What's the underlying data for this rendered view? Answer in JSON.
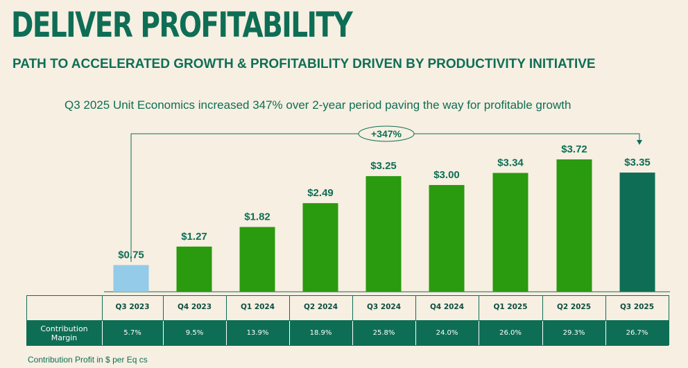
{
  "header": {
    "title": "DELIVER PROFITABILITY",
    "subtitle": "PATH TO ACCELERATED GROWTH & PROFITABILITY DRIVEN BY PRODUCTIVITY INITIATIVE"
  },
  "caption": "Q3 2025 Unit Economics increased 347% over 2-year period paving the way for profitable growth",
  "growth_badge": "+347%",
  "colors": {
    "green": "#2a9a0e",
    "dark_green": "#0e6e55",
    "light_blue": "#93cbe8",
    "background": "#f6efe2"
  },
  "chart_data": {
    "type": "bar",
    "title": "Contribution Profit in $ per Eq cs",
    "categories": [
      "Q3 2023",
      "Q4 2023",
      "Q1 2024",
      "Q2 2024",
      "Q3 2024",
      "Q4 2024",
      "Q1 2025",
      "Q2 2025",
      "Q3 2025"
    ],
    "values": [
      0.75,
      1.27,
      1.82,
      2.49,
      3.25,
      3.0,
      3.34,
      3.72,
      3.35
    ],
    "value_labels": [
      "$0.75",
      "$1.27",
      "$1.82",
      "$2.49",
      "$3.25",
      "$3.00",
      "$3.34",
      "$3.72",
      "$3.35"
    ],
    "bar_colors": [
      "#93cbe8",
      "#2a9a0e",
      "#2a9a0e",
      "#2a9a0e",
      "#2a9a0e",
      "#2a9a0e",
      "#2a9a0e",
      "#2a9a0e",
      "#0e6e55"
    ],
    "ylim": [
      0,
      4.2
    ],
    "xlabel": "",
    "ylabel": ""
  },
  "table": {
    "row_label": "Contribution Margin",
    "margins": [
      "5.7%",
      "9.5%",
      "13.9%",
      "18.9%",
      "25.8%",
      "24.0%",
      "26.0%",
      "29.3%",
      "26.7%"
    ]
  },
  "footnote": "Contribution Profit in $ per Eq cs"
}
